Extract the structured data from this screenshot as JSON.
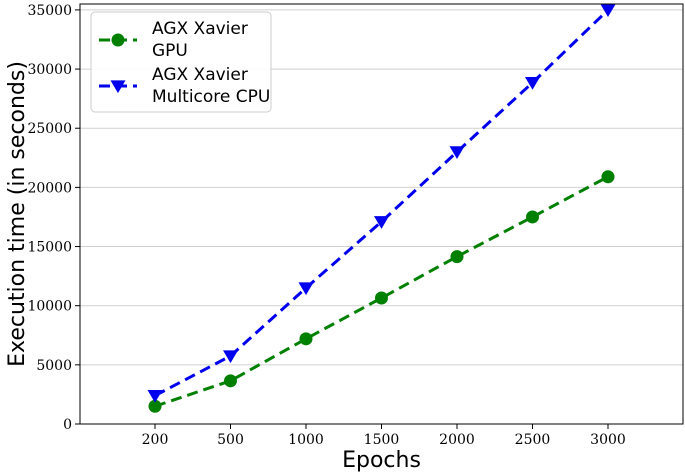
{
  "chart_data": {
    "type": "line",
    "categories": [
      "200",
      "500",
      "1000",
      "1500",
      "2000",
      "2500",
      "3000"
    ],
    "xlabel": "Epochs",
    "ylabel": "Execution time (in seconds)",
    "ylim": [
      0,
      35500
    ],
    "yticks": [
      0,
      5000,
      10000,
      15000,
      20000,
      25000,
      30000,
      35000
    ],
    "grid": "horizontal",
    "legend_position": "top-left",
    "series": [
      {
        "name_lines": [
          "AGX Xavier",
          "GPU"
        ],
        "color": "#008000",
        "marker": "circle",
        "line_style": "dashed",
        "values": [
          1500,
          3650,
          7200,
          10650,
          14150,
          17500,
          20900
        ]
      },
      {
        "name_lines": [
          "AGX Xavier",
          "Multicore CPU"
        ],
        "color": "#0000ee",
        "marker": "triangle-down",
        "line_style": "dashed",
        "values": [
          2400,
          5750,
          11500,
          17100,
          23000,
          28850,
          35000
        ]
      }
    ]
  }
}
